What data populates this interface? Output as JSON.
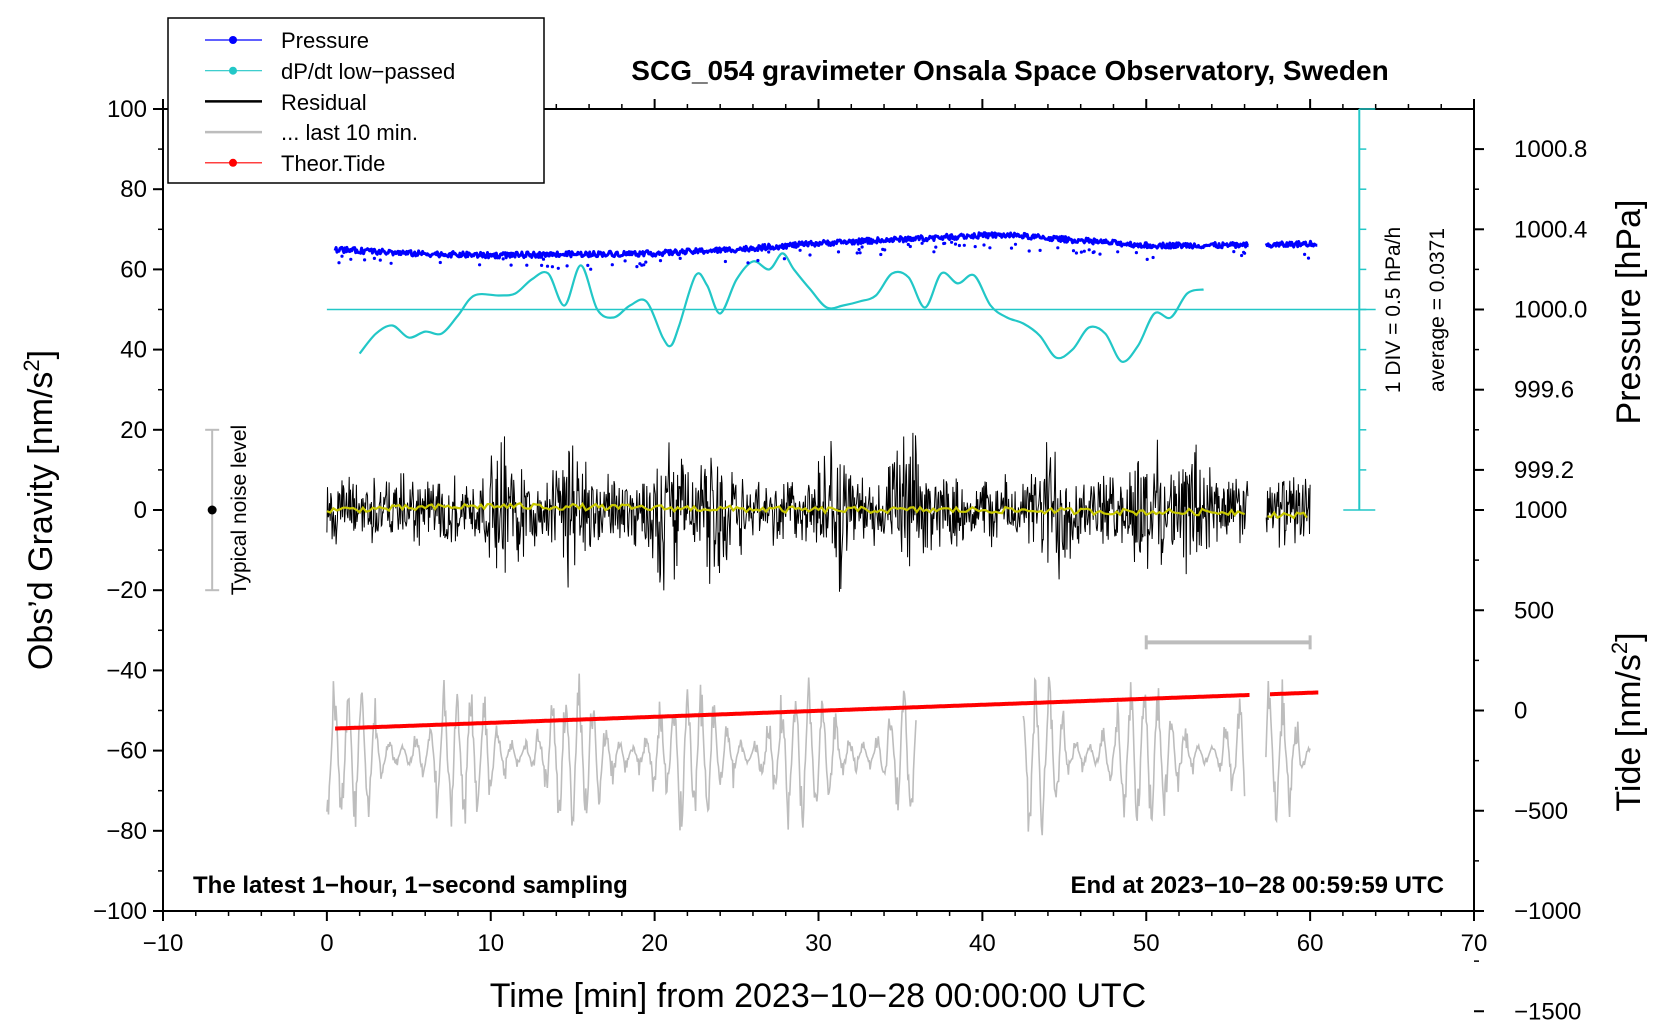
{
  "chart_data": {
    "type": "line",
    "title": "SCG_054 gravimeter Onsala Space Observatory, Sweden",
    "xlabel": "Time [min] from 2023−10−28 00:00:00 UTC",
    "ylabel_left": "Obs’d Gravity [nm/s",
    "ylabel_left_sup": "2",
    "ylabel_left_close": "]",
    "ylabel_pressure": "Pressure [hPa]",
    "ylabel_tide": "Tide [nm/s",
    "ylabel_tide_sup": "2",
    "ylabel_tide_close": "]",
    "xlim": [
      -10,
      70
    ],
    "ylim": [
      -100,
      100
    ],
    "x_ticks": [
      -10,
      0,
      10,
      20,
      30,
      40,
      50,
      60,
      70
    ],
    "x_tick_labels": [
      "−10",
      "0",
      "10",
      "20",
      "30",
      "40",
      "50",
      "60",
      "70"
    ],
    "y_ticks": [
      -100,
      -80,
      -60,
      -40,
      -20,
      0,
      20,
      40,
      60,
      80,
      100
    ],
    "y_tick_labels": [
      "−100",
      "−80",
      "−60",
      "−40",
      "−20",
      "0",
      "20",
      "40",
      "60",
      "80",
      "100"
    ],
    "pressure_axis": {
      "values": [
        999.2,
        999.6,
        1000.0,
        1000.4,
        1000.8
      ],
      "labels": [
        "999.2",
        "999.6",
        "1000.0",
        "1000.4",
        "1000.8"
      ],
      "gravity_at_1000": 50,
      "gravity_per_hpa": 50
    },
    "tide_axis": {
      "values": [
        -1500,
        -1000,
        -500,
        0,
        500,
        1000
      ],
      "labels": [
        "−1500",
        "−1000",
        "−500",
        "0",
        "500",
        "1000"
      ],
      "gravity_at_0": -50,
      "gravity_per_unit": 0.05
    },
    "dpdt_scale": {
      "label": "1 DIV = 0.5 hPa/h",
      "average_label": "average = 0.0371",
      "x": 63,
      "y_range": [
        0,
        100
      ],
      "divisions": 10
    },
    "noise_bar": {
      "label": "Typical noise level",
      "x": -7,
      "center": 0,
      "half_range": 20
    },
    "last10_marker": {
      "x_start": 50,
      "x_end": 60,
      "y": -33
    },
    "baseline_dpdt": 50,
    "notes": {
      "left": "The latest 1−hour, 1−second sampling",
      "right": "End at 2023−10−28 00:59:59 UTC"
    },
    "legend": [
      {
        "name": "Pressure",
        "color": "#0000ff",
        "marker": true
      },
      {
        "name": "dP/dt low−passed",
        "color": "#22c7c7",
        "marker": true
      },
      {
        "name": "Residual",
        "color": "#000000",
        "marker": false
      },
      {
        "name": "... last 10 min.",
        "color": "#bdbdbd",
        "marker": false
      },
      {
        "name": "Theor.Tide",
        "color": "#ff0000",
        "marker": true
      }
    ],
    "series": [
      {
        "name": "Pressure",
        "color": "#0000ff",
        "gaps": [
          [
            56.3,
            57.3
          ]
        ],
        "x": [
          0.5,
          5,
          10,
          15,
          20,
          25,
          30,
          35,
          40,
          42,
          45,
          50,
          55,
          56.3,
          57.3,
          60.5
        ],
        "y": [
          65,
          64,
          63.5,
          63.8,
          64,
          65,
          66.5,
          67.5,
          68.5,
          68.5,
          67.5,
          66,
          66,
          66,
          66,
          66.5
        ]
      },
      {
        "name": "dP/dt low−passed",
        "color": "#22c7c7",
        "x": [
          2,
          3,
          4,
          5,
          6,
          7,
          8,
          9,
          10.5,
          11.5,
          12.5,
          13.5,
          14.5,
          15.5,
          16.5,
          17.5,
          18.5,
          19.5,
          20.5,
          21,
          21.5,
          22.5,
          23.2,
          24,
          25,
          26,
          27,
          27.8,
          28.5,
          29.5,
          30.5,
          31.5,
          32.5,
          33.5,
          34.5,
          35.5,
          36.5,
          37.5,
          38.5,
          39.5,
          40.5,
          41.5,
          42.5,
          43.5,
          44.5,
          45.5,
          46.5,
          47.5,
          48.5,
          49.5,
          50.5,
          51.5,
          52.5,
          53.5
        ],
        "y": [
          39,
          44,
          46,
          43,
          44.5,
          44,
          48.5,
          53.5,
          53.5,
          54,
          57.5,
          59,
          51,
          61,
          50,
          48,
          51,
          52,
          43,
          41,
          46,
          58.5,
          56,
          49,
          57.5,
          62,
          60,
          64,
          60,
          55,
          50.5,
          51,
          52,
          53.5,
          59,
          58,
          50.5,
          59,
          56.5,
          58.5,
          51,
          48,
          46.5,
          43.5,
          38,
          40,
          45.5,
          44,
          37,
          41,
          49,
          48,
          54,
          55
        ]
      },
      {
        "name": "Residual",
        "color": "#000000",
        "gaps": [
          [
            56.2,
            57.3
          ]
        ],
        "x_range": [
          0,
          60
        ],
        "envelope_min": 10,
        "envelope_max": 27,
        "burst_minutes": [
          11,
          15,
          20.8,
          24,
          31,
          35.5,
          44.5,
          50,
          53
        ]
      },
      {
        "name": "Residual mean",
        "color": "#c8c800",
        "x": [
          0,
          10,
          20,
          30,
          40,
          50,
          56,
          57.3,
          60
        ],
        "y": [
          0,
          1,
          0.5,
          0,
          0,
          -0.5,
          -0.5,
          -1,
          -1.5
        ]
      },
      {
        "name": "... last 10 min.",
        "color": "#bdbdbd",
        "segments": [
          [
            0,
            36
          ],
          [
            42.5,
            56
          ],
          [
            57.3,
            60
          ]
        ],
        "y_center": -61,
        "amplitude_range": [
          8,
          22
        ]
      },
      {
        "name": "Theor.Tide",
        "color": "#ff0000",
        "gaps": [
          [
            56.3,
            57.5
          ]
        ],
        "x": [
          0.5,
          60.5
        ],
        "y": [
          -54.5,
          -45.5
        ]
      }
    ]
  }
}
